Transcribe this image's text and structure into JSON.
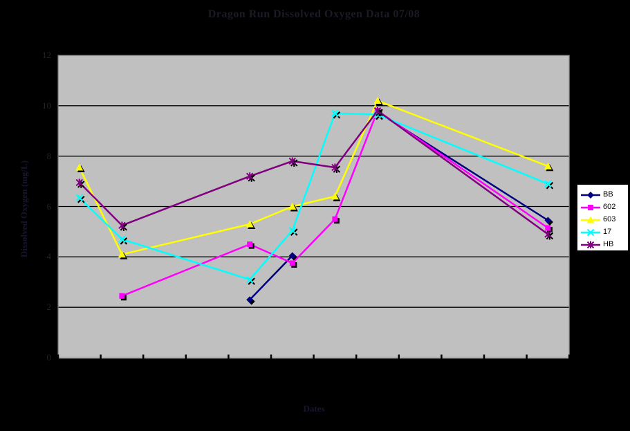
{
  "chart_data": {
    "type": "line",
    "title": "Dragon Run Dissolved Oxygen Data 07/08",
    "xlabel": "Dates",
    "ylabel": "Dissolved Oxygen (mg/L)",
    "ylim": [
      0,
      12
    ],
    "yticks": [
      12,
      10,
      8,
      6,
      4,
      2,
      0
    ],
    "x_category_count": 12,
    "x_tick_labels": [],
    "grid": true,
    "legend_position": "right",
    "colors": {
      "background": "#000000",
      "plot_background": "#c0c0c0",
      "gridline": "#000000",
      "plot_border": "#7a7a7a",
      "axis_line": "#b0b0b0",
      "marker_shadow": "#000000"
    },
    "series": [
      {
        "name": "BB",
        "color": "#000080",
        "marker": "diamond",
        "segments": [
          [
            [
              5,
              2.3
            ],
            [
              6,
              4.05
            ]
          ],
          [
            [
              8,
              9.75
            ],
            [
              12,
              5.45
            ]
          ]
        ]
      },
      {
        "name": "602",
        "color": "#ff00ff",
        "marker": "square",
        "segments": [
          [
            [
              2,
              2.45
            ],
            [
              5,
              4.5
            ],
            [
              6,
              3.75
            ],
            [
              7,
              5.5
            ],
            [
              8,
              9.8
            ],
            [
              12,
              5.15
            ]
          ]
        ]
      },
      {
        "name": "603",
        "color": "#ffff00",
        "marker": "triangle",
        "segments": [
          [
            [
              1,
              7.55
            ],
            [
              2,
              4.1
            ],
            [
              5,
              5.3
            ],
            [
              6,
              6.0
            ],
            [
              7,
              6.4
            ],
            [
              8,
              10.2
            ],
            [
              12,
              7.6
            ]
          ]
        ]
      },
      {
        "name": "17",
        "color": "#00ffff",
        "marker": "x",
        "segments": [
          [
            [
              1,
              6.35
            ],
            [
              2,
              4.7
            ],
            [
              5,
              3.1
            ],
            [
              6,
              5.05
            ],
            [
              7,
              9.7
            ],
            [
              8,
              9.65
            ],
            [
              12,
              6.9
            ]
          ]
        ]
      },
      {
        "name": "HB",
        "color": "#800080",
        "marker": "star",
        "segments": [
          [
            [
              1,
              6.95
            ],
            [
              2,
              5.25
            ],
            [
              5,
              7.2
            ],
            [
              6,
              7.8
            ],
            [
              7,
              7.55
            ],
            [
              8,
              9.8
            ],
            [
              12,
              4.9
            ]
          ]
        ]
      }
    ]
  },
  "legend": {
    "entries": [
      {
        "label": "BB"
      },
      {
        "label": "602"
      },
      {
        "label": "603"
      },
      {
        "label": "17"
      },
      {
        "label": "HB"
      }
    ]
  }
}
